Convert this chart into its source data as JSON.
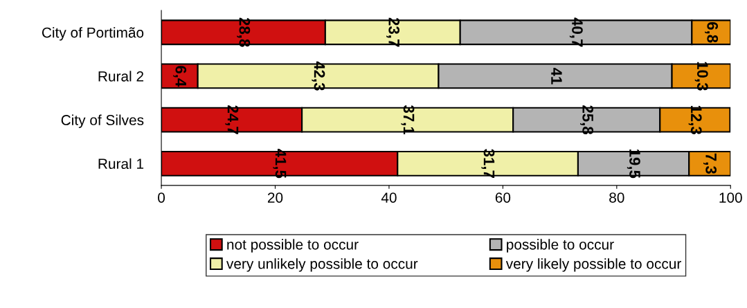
{
  "chart_data": {
    "type": "bar",
    "orientation": "horizontal",
    "stacked": true,
    "categories": [
      "City of Portimão",
      "Rural 2",
      "City of Silves",
      "Rural 1"
    ],
    "series": [
      {
        "name": "not possible to occur",
        "color": "#d01010",
        "values": [
          28.8,
          6.4,
          24.7,
          41.5
        ],
        "value_labels": [
          "28,8",
          "6,4",
          "24,7",
          "41,5"
        ]
      },
      {
        "name": "very unlikely possible to occur",
        "color": "#f0f0a8",
        "values": [
          23.7,
          42.3,
          37.1,
          31.7
        ],
        "value_labels": [
          "23,7",
          "42,3",
          "37,1",
          "31,7"
        ]
      },
      {
        "name": "possible to occur",
        "color": "#b4b4b4",
        "values": [
          40.7,
          41,
          25.8,
          19.5
        ],
        "value_labels": [
          "40,7",
          "41",
          "25,8",
          "19,5"
        ]
      },
      {
        "name": "very likely possible to occur",
        "color": "#e8900c",
        "values": [
          6.8,
          10.3,
          12.3,
          7.3
        ],
        "value_labels": [
          "6,8",
          "10,3",
          "12,3",
          "7,3"
        ]
      }
    ],
    "xlim": [
      0,
      100
    ],
    "xticks": [
      0,
      20,
      40,
      60,
      80,
      100
    ],
    "grid": false,
    "legend": "bottom"
  }
}
